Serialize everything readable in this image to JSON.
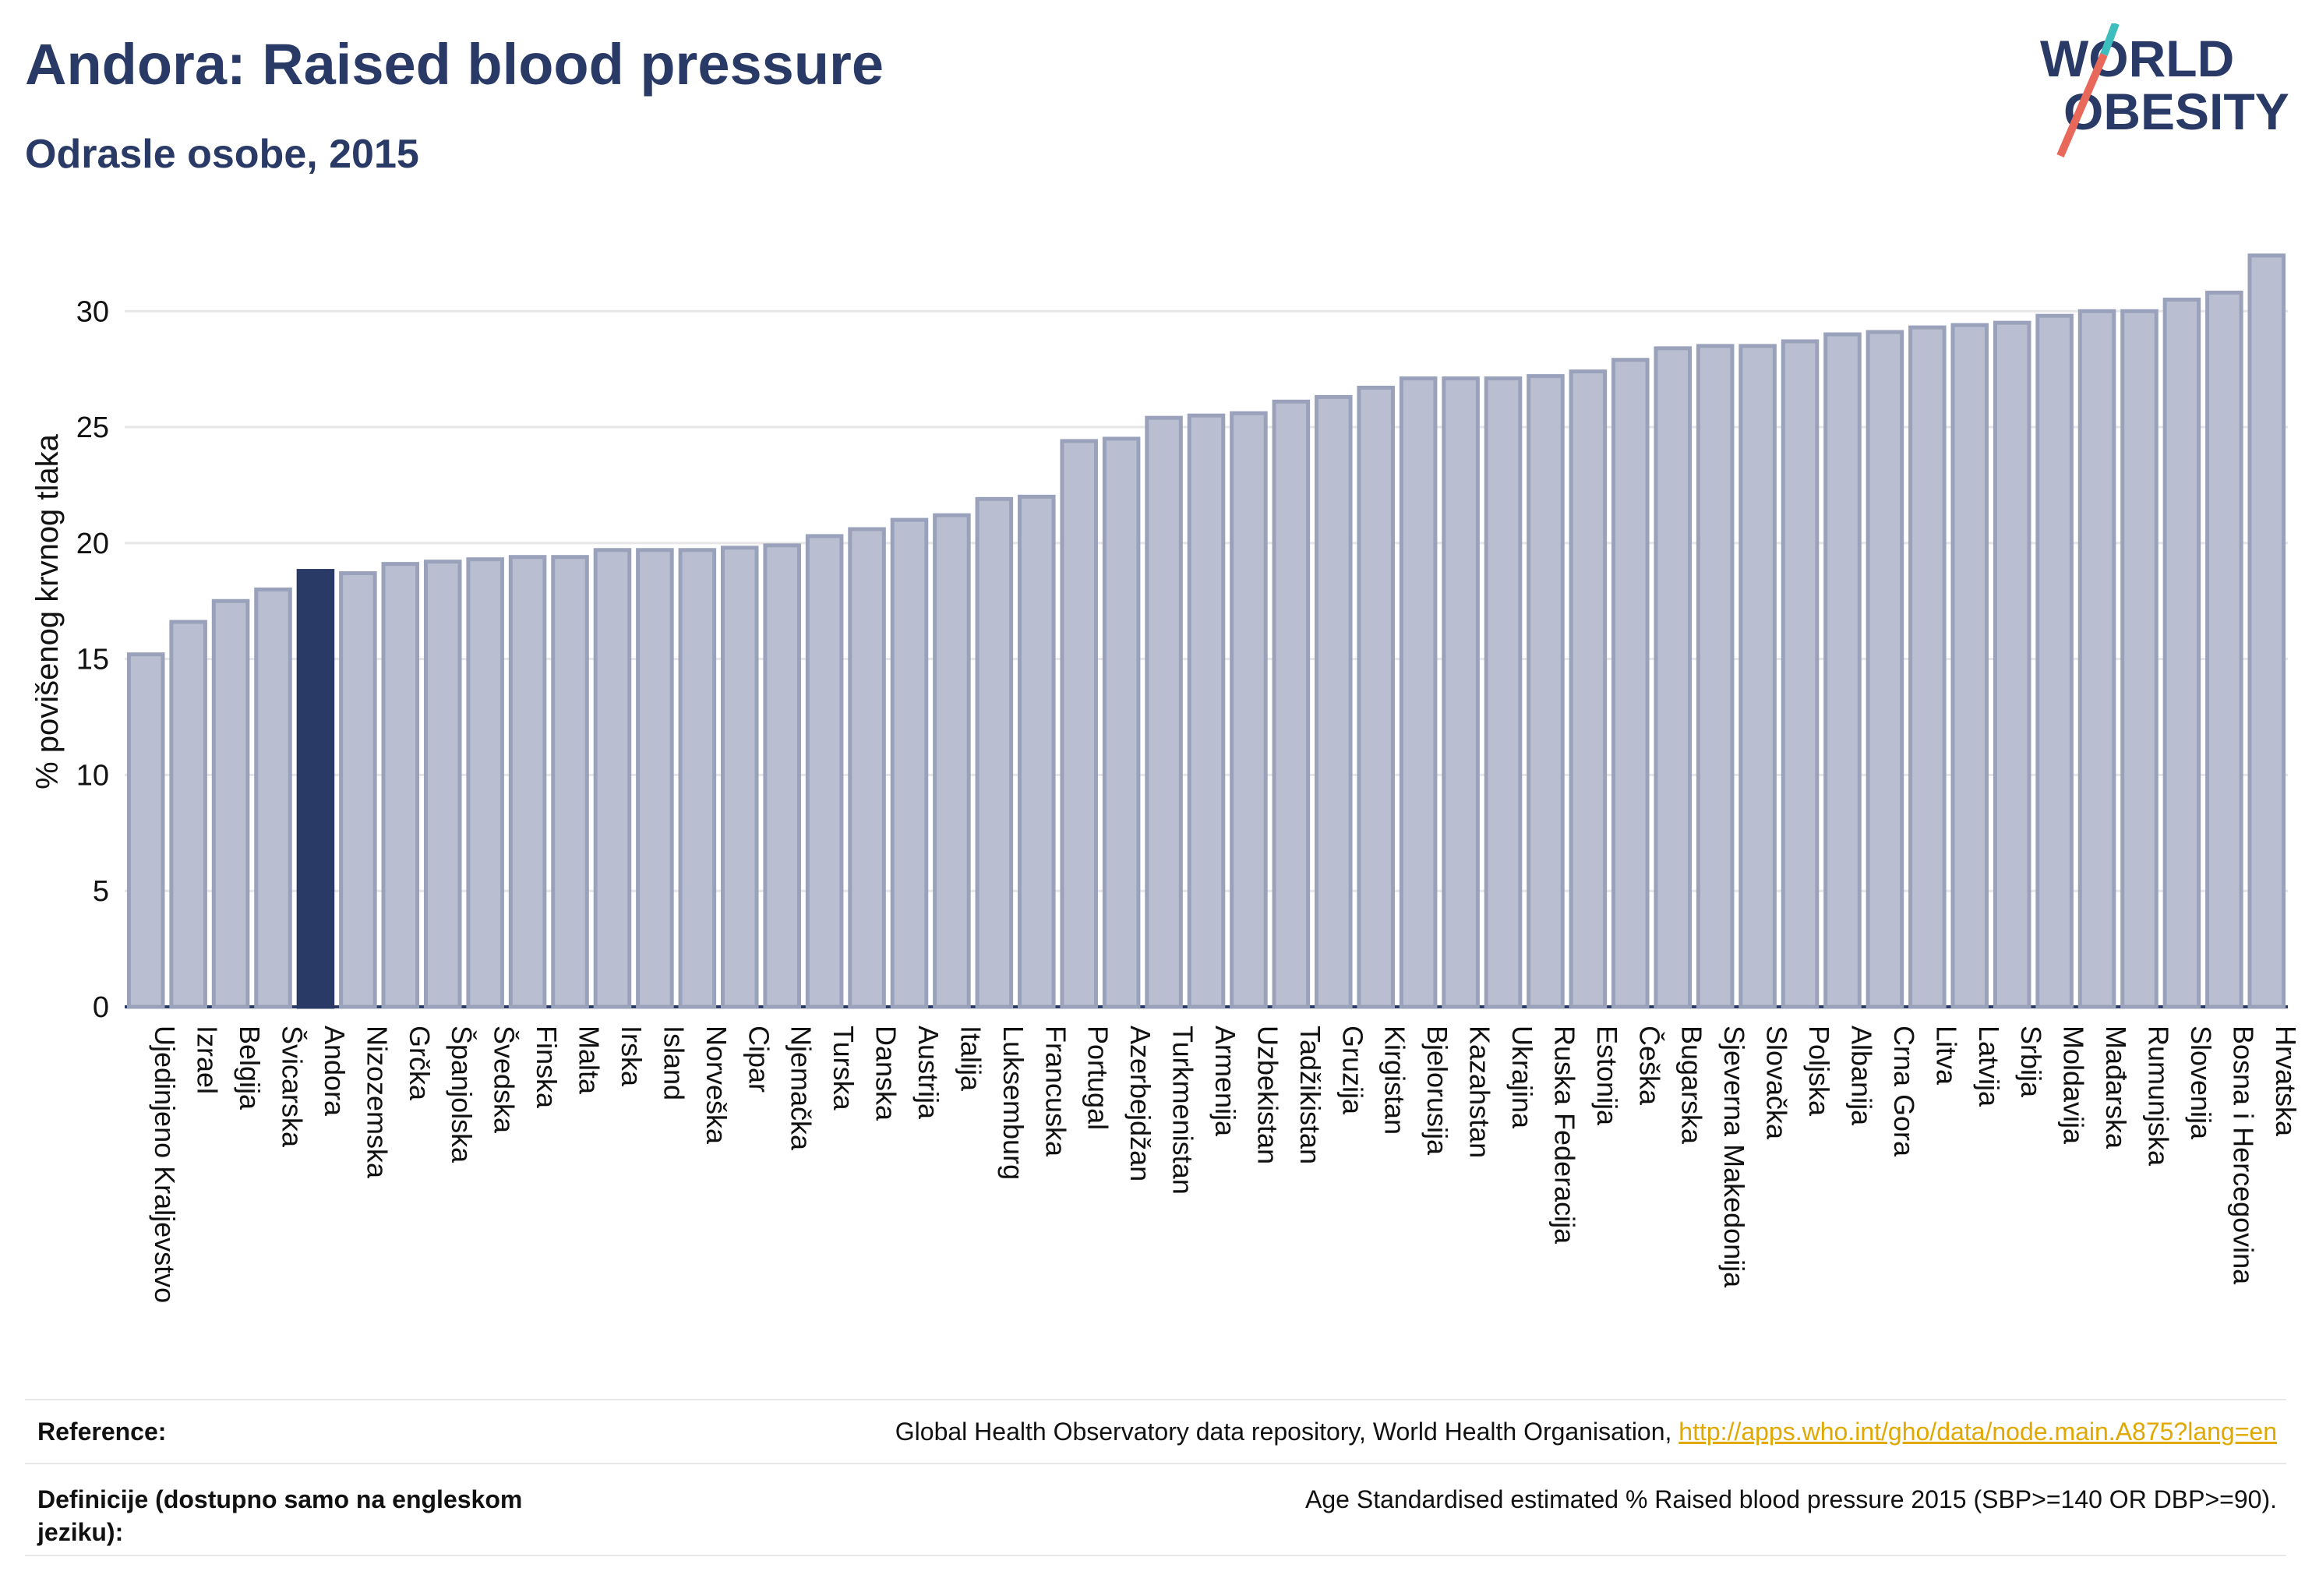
{
  "header": {
    "title": "Andora: Raised blood pressure",
    "subtitle": "Odrasle osobe, 2015",
    "logo_line1": "WORLD",
    "logo_line2": "OBESITY"
  },
  "chart_data": {
    "type": "bar",
    "title": "Andora: Raised blood pressure",
    "subtitle": "Odrasle osobe, 2015",
    "xlabel": "",
    "ylabel": "% povišenog krvnog tlaka",
    "ylim": [
      0,
      33
    ],
    "yticks": [
      0,
      5,
      10,
      15,
      20,
      25,
      30
    ],
    "grid": true,
    "highlight": "Andora",
    "colors": {
      "bar": "#b9bfd0",
      "bar_edge": "#9aa2bb",
      "highlight": "#2a3a66",
      "axis": "#2a3a66",
      "grid": "#e6e6e6"
    },
    "categories": [
      "Ujedinjeno Kraljevstvo",
      "Izrael",
      "Belgija",
      "Švicarska",
      "Andora",
      "Nizozemska",
      "Grčka",
      "Španjolska",
      "Švedska",
      "Finska",
      "Malta",
      "Irska",
      "Island",
      "Norveška",
      "Cipar",
      "Njemačka",
      "Turska",
      "Danska",
      "Austrija",
      "Italija",
      "Luksemburg",
      "Francuska",
      "Portugal",
      "Azerbejdžan",
      "Turkmenistan",
      "Armenija",
      "Uzbekistan",
      "Tadžikistan",
      "Gruzija",
      "Kirgistan",
      "Bjelorusija",
      "Kazahstan",
      "Ukrajina",
      "Ruska Federacija",
      "Estonija",
      "Češka",
      "Bugarska",
      "Sjeverna Makedonija",
      "Slovačka",
      "Poljska",
      "Albanija",
      "Crna Gora",
      "Litva",
      "Latvija",
      "Srbija",
      "Moldavija",
      "Mađarska",
      "Rumunjska",
      "Slovenija",
      "Bosna i Hercegovina",
      "Hrvatska"
    ],
    "values": [
      15.2,
      16.6,
      17.5,
      18.0,
      18.8,
      18.7,
      19.1,
      19.2,
      19.3,
      19.4,
      19.4,
      19.7,
      19.7,
      19.7,
      19.8,
      19.9,
      20.3,
      20.6,
      21.0,
      21.2,
      21.9,
      22.0,
      24.4,
      24.5,
      25.4,
      25.5,
      25.6,
      26.1,
      26.3,
      26.7,
      27.1,
      27.1,
      27.1,
      27.2,
      27.4,
      27.9,
      28.4,
      28.5,
      28.5,
      28.7,
      29.0,
      29.1,
      29.3,
      29.4,
      29.5,
      29.8,
      30.0,
      30.0,
      30.5,
      30.8,
      32.4
    ]
  },
  "reference": {
    "label": "Reference:",
    "text": "Global Health Observatory data repository, World Health Organisation, ",
    "link": "http://apps.who.int/gho/data/node.main.A875?lang=en"
  },
  "definition": {
    "label": "Definicije (dostupno samo na engleskom jeziku):",
    "text": "Age Standardised estimated % Raised blood pressure 2015 (SBP>=140 OR DBP>=90)."
  }
}
